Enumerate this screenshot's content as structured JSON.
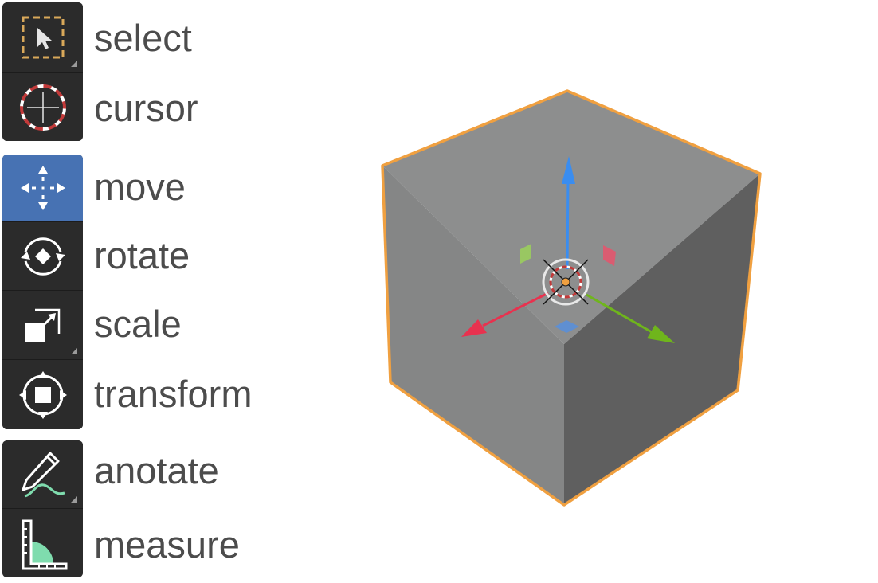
{
  "toolbar": {
    "tools": [
      {
        "id": "select",
        "label": "select",
        "icon": "select-box-icon",
        "active": false
      },
      {
        "id": "cursor",
        "label": "cursor",
        "icon": "cursor-icon",
        "active": false
      },
      {
        "id": "move",
        "label": "move",
        "icon": "move-icon",
        "active": true
      },
      {
        "id": "rotate",
        "label": "rotate",
        "icon": "rotate-icon",
        "active": false
      },
      {
        "id": "scale",
        "label": "scale",
        "icon": "scale-icon",
        "active": false
      },
      {
        "id": "transform",
        "label": "transform",
        "icon": "transform-icon",
        "active": false
      },
      {
        "id": "anotate",
        "label": "anotate",
        "icon": "annotate-icon",
        "active": false
      },
      {
        "id": "measure",
        "label": "measure",
        "icon": "measure-icon",
        "active": false
      }
    ]
  },
  "viewport": {
    "object": "cube",
    "selection_outline_color": "#f0a040",
    "gizmo": {
      "x_axis_color": "#e8324f",
      "y_axis_color": "#6fb51c",
      "z_axis_color": "#3a8df0"
    }
  },
  "colors": {
    "toolbar_bg": "#2b2b2b",
    "active_tool": "#4772b3",
    "label_text": "#4c4c4c"
  }
}
